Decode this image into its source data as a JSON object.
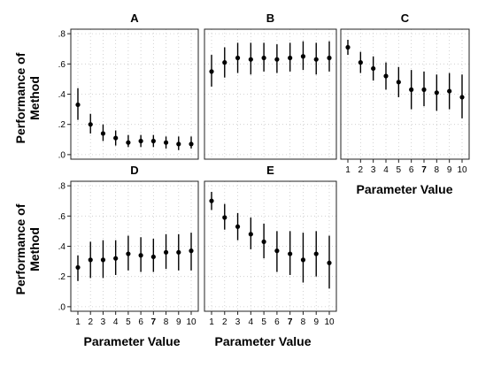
{
  "chart_data": {
    "type": "scatter",
    "ylabel": "Performance of Method",
    "xlabel": "Parameter Value",
    "x": [
      1,
      2,
      3,
      4,
      5,
      6,
      7,
      8,
      9,
      10
    ],
    "x_tick_labels": [
      "1",
      "2",
      "3",
      "4",
      "5",
      "6",
      "7",
      "8",
      "9",
      "10"
    ],
    "bold_x_tick": "7",
    "y_tick_labels": [
      ".0",
      ".2",
      ".4",
      ".6",
      ".8"
    ],
    "ylim": [
      -0.03,
      0.83
    ],
    "grid": true,
    "panels": [
      {
        "title": "A",
        "means": [
          0.33,
          0.2,
          0.14,
          0.11,
          0.08,
          0.09,
          0.09,
          0.08,
          0.07,
          0.07
        ],
        "lower": [
          0.23,
          0.14,
          0.09,
          0.06,
          0.05,
          0.05,
          0.05,
          0.04,
          0.03,
          0.04
        ],
        "upper": [
          0.44,
          0.27,
          0.2,
          0.16,
          0.13,
          0.13,
          0.13,
          0.12,
          0.12,
          0.12
        ]
      },
      {
        "title": "B",
        "means": [
          0.55,
          0.61,
          0.64,
          0.63,
          0.64,
          0.63,
          0.64,
          0.65,
          0.63,
          0.64
        ],
        "lower": [
          0.45,
          0.51,
          0.54,
          0.53,
          0.55,
          0.54,
          0.55,
          0.56,
          0.53,
          0.55
        ],
        "upper": [
          0.66,
          0.71,
          0.74,
          0.74,
          0.74,
          0.73,
          0.74,
          0.75,
          0.74,
          0.75
        ]
      },
      {
        "title": "C",
        "means": [
          0.71,
          0.61,
          0.57,
          0.52,
          0.48,
          0.43,
          0.43,
          0.41,
          0.42,
          0.38
        ],
        "lower": [
          0.66,
          0.54,
          0.49,
          0.43,
          0.38,
          0.3,
          0.32,
          0.29,
          0.3,
          0.24
        ],
        "upper": [
          0.76,
          0.68,
          0.65,
          0.61,
          0.58,
          0.56,
          0.55,
          0.53,
          0.54,
          0.53
        ]
      },
      {
        "title": "D",
        "means": [
          0.26,
          0.31,
          0.31,
          0.32,
          0.35,
          0.34,
          0.33,
          0.36,
          0.36,
          0.37
        ],
        "lower": [
          0.17,
          0.19,
          0.19,
          0.21,
          0.24,
          0.23,
          0.23,
          0.25,
          0.24,
          0.24
        ],
        "upper": [
          0.34,
          0.43,
          0.44,
          0.44,
          0.47,
          0.46,
          0.45,
          0.48,
          0.48,
          0.49
        ]
      },
      {
        "title": "E",
        "means": [
          0.7,
          0.59,
          0.53,
          0.48,
          0.43,
          0.37,
          0.35,
          0.31,
          0.35,
          0.29
        ],
        "lower": [
          0.64,
          0.51,
          0.44,
          0.38,
          0.32,
          0.23,
          0.21,
          0.16,
          0.2,
          0.12
        ],
        "upper": [
          0.76,
          0.68,
          0.62,
          0.59,
          0.55,
          0.5,
          0.5,
          0.49,
          0.5,
          0.47
        ]
      }
    ]
  }
}
